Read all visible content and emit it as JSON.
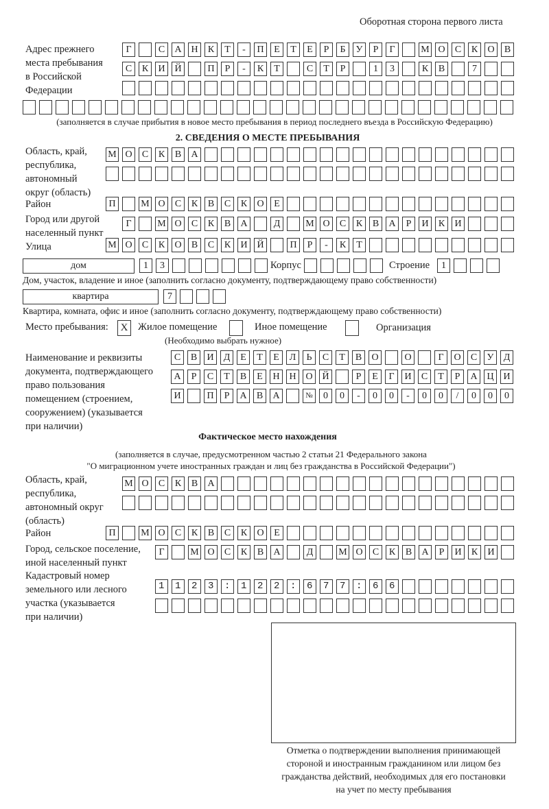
{
  "page_header": "Оборотная сторона первого листа",
  "prev_address": {
    "label": "Адрес прежнего\nместа пребывания\nв Российской\nФедерации",
    "rows": [
      "Г САНКТ-ПЕТЕРБУРГ МОСКОВ",
      "СКИЙ ПР-КТ СТР 13 КВ 7",
      "",
      ""
    ],
    "note": "(заполняется в случае прибытия в новое место пребывания в период последнего въезда в Российскую Федерацию)"
  },
  "section2": {
    "title": "2. СВЕДЕНИЯ О МЕСТЕ ПРЕБЫВАНИЯ",
    "region": {
      "label": "Область, край,\nреспублика,\nавтономный\nокруг (область)",
      "rows": [
        "МОСКВА",
        ""
      ]
    },
    "district": {
      "label": "Район",
      "value": "П МОСКВСКОЕ"
    },
    "city": {
      "label": "Город или другой\nнаселенный пункт",
      "value": "Г МОСКВА Д МОСКВАРИКИ"
    },
    "street": {
      "label": "Улица",
      "value": "МОСКОВСКИЙ ПР-КТ"
    },
    "house": {
      "type": "дом",
      "value": "13",
      "korpus_label": "Корпус",
      "korpus": "",
      "stroenie_label": "Строение",
      "stroenie": "1",
      "note": "Дом, участок, владение и иное (заполнить согласно документу, подтверждающему право собственности)"
    },
    "apartment": {
      "type": "квартира",
      "value": "7",
      "note": "Квартира, комната, офис и иное (заполнить согласно документу, подтверждающему право собственности)"
    },
    "stay_place": {
      "label": "Место пребывания:",
      "options": [
        {
          "label": "Жилое помещение",
          "mark": "X",
          "checked": true
        },
        {
          "label": "Иное помещение",
          "mark": "",
          "checked": false
        },
        {
          "label": "Организация",
          "mark": "",
          "checked": false
        }
      ],
      "note": "(Необходимо выбрать нужное)"
    },
    "document": {
      "label": "Наименование и реквизиты\nдокумента, подтверждающего\nправо пользования\nпомещением (строением,\nсооружением) (указывается\nпри наличии)",
      "rows": [
        "СВИДЕТЕЛЬСТВО О ГОСУД",
        "АРСТВЕННОЙ РЕГИСТРАЦИ",
        "И ПРАВА №00-00-00/000"
      ]
    }
  },
  "actual": {
    "title": "Фактическое место нахождения",
    "note_line1": "(заполняется в случае, предусмотренном частью 2 статьи 21 Федерального закона",
    "note_line2": "\"О миграционном учете иностранных граждан и лиц без гражданства в Российской Федерации\")",
    "region": {
      "label": "Область, край,\nреспублика,\nавтономный округ\n(область)",
      "rows": [
        "МОСКВА",
        ""
      ]
    },
    "district": {
      "label": "Район",
      "value": "П МОСКВСКОЕ"
    },
    "city": {
      "label": "Город, сельское поселение,\nиной населенный пункт",
      "value": "Г МОСКВА Д МОСКВАРИКИ"
    },
    "cadastre": {
      "label": "Кадастровый номер\nземельного или лесного\nучастка (указывается\nпри наличии)",
      "rows": [
        "1123:122:677:66",
        ""
      ]
    }
  },
  "stamp": {
    "caption": "Отметка о подтверждении выполнения принимающей\nстороной и иностранным гражданином или лицом без\nгражданства действий, необходимых для его постановки\nна учет по месту пребывания"
  }
}
